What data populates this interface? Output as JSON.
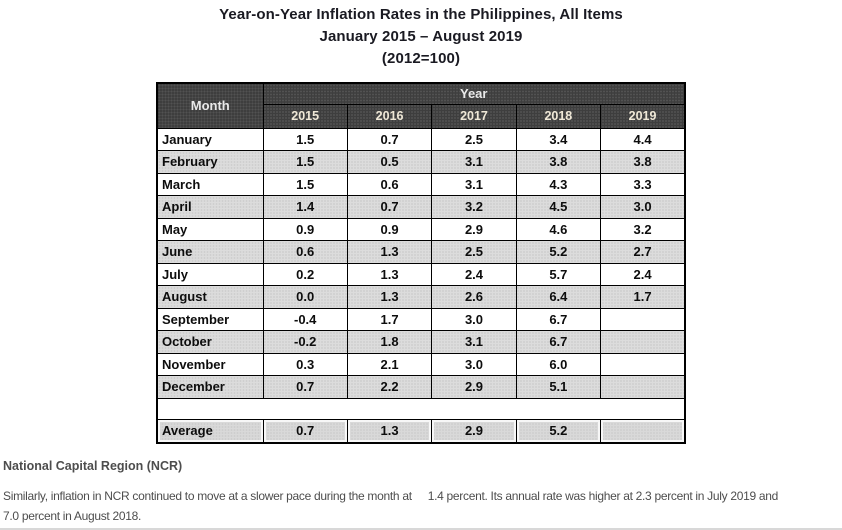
{
  "title": {
    "line1": "Year-on-Year Inflation Rates in the Philippines, All Items",
    "line2": "January 2015 – August 2019",
    "line3": "(2012=100)"
  },
  "table": {
    "corner_header": "Month",
    "group_header": "Year",
    "year_headers": [
      "2015",
      "2016",
      "2017",
      "2018",
      "2019"
    ],
    "rows": [
      {
        "month": "January",
        "values": [
          "1.5",
          "0.7",
          "2.5",
          "3.4",
          "4.4"
        ]
      },
      {
        "month": "February",
        "values": [
          "1.5",
          "0.5",
          "3.1",
          "3.8",
          "3.8"
        ]
      },
      {
        "month": "March",
        "values": [
          "1.5",
          "0.6",
          "3.1",
          "4.3",
          "3.3"
        ]
      },
      {
        "month": "April",
        "values": [
          "1.4",
          "0.7",
          "3.2",
          "4.5",
          "3.0"
        ]
      },
      {
        "month": "May",
        "values": [
          "0.9",
          "0.9",
          "2.9",
          "4.6",
          "3.2"
        ]
      },
      {
        "month": "June",
        "values": [
          "0.6",
          "1.3",
          "2.5",
          "5.2",
          "2.7"
        ]
      },
      {
        "month": "July",
        "values": [
          "0.2",
          "1.3",
          "2.4",
          "5.7",
          "2.4"
        ]
      },
      {
        "month": "August",
        "values": [
          "0.0",
          "1.3",
          "2.6",
          "6.4",
          "1.7"
        ]
      },
      {
        "month": "September",
        "values": [
          "-0.4",
          "1.7",
          "3.0",
          "6.7",
          ""
        ]
      },
      {
        "month": "October",
        "values": [
          "-0.2",
          "1.8",
          "3.1",
          "6.7",
          ""
        ]
      },
      {
        "month": "November",
        "values": [
          "0.3",
          "2.1",
          "3.0",
          "6.0",
          ""
        ]
      },
      {
        "month": "December",
        "values": [
          "0.7",
          "2.2",
          "2.9",
          "5.1",
          ""
        ]
      }
    ],
    "average_row": {
      "label": "Average",
      "values": [
        "0.7",
        "1.3",
        "2.9",
        "5.2",
        ""
      ]
    }
  },
  "footer": {
    "heading": "National Capital Region (NCR)",
    "paragraph_part1": "Similarly, inflation in NCR continued to move at a slower pace during the month at",
    "paragraph_part2": "1.4 percent. Its annual rate was higher at 2.3 percent in July 2019 and",
    "paragraph_line2": "7.0 percent in August 2018."
  },
  "colors": {
    "header_bg": "#3e3e3e",
    "header_text": "#e9e9e9",
    "year_header_text": "#efe8d7",
    "alt_row_bg": "#dcdcdc",
    "average_row_bg": "#d9d9d9",
    "border": "#000000",
    "title_text": "#1a1a22",
    "footer_text": "#4d4d4d"
  }
}
